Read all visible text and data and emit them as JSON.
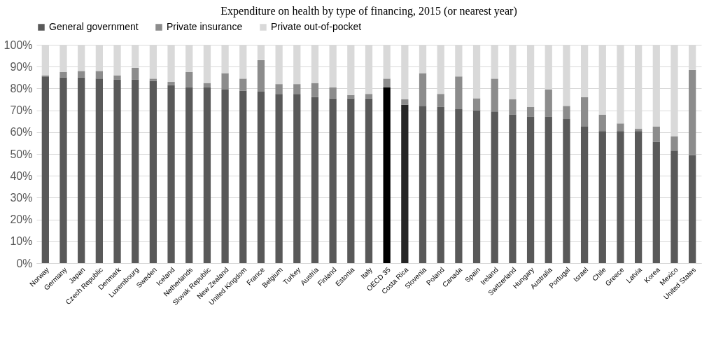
{
  "chart_data": {
    "type": "bar",
    "title": "Expenditure on health by type of financing, 2015 (or nearest year)",
    "stacked": true,
    "legend": "top",
    "grid": "y",
    "categories": [
      "Norway",
      "Germany",
      "Japan",
      "Czech Republic",
      "Denmark",
      "Luxembourg",
      "Sweden",
      "Iceland",
      "Netherlands",
      "Slovak Republic",
      "New Zealand",
      "United Kingdom",
      "France",
      "Belgium",
      "Turkey",
      "Austria",
      "Finland",
      "Estonia",
      "Italy",
      "OECD 35",
      "Costa Rica",
      "Slovenia",
      "Poland",
      "Canada",
      "Spain",
      "Ireland",
      "Switzerland",
      "Hungary",
      "Australia",
      "Portugal",
      "Israel",
      "Chile",
      "Greece",
      "Latvia",
      "Korea",
      "Mexico",
      "United States"
    ],
    "series": [
      {
        "name": "General government",
        "color": "#595959",
        "colors": [
          "#595959",
          "#595959",
          "#595959",
          "#595959",
          "#595959",
          "#595959",
          "#595959",
          "#595959",
          "#595959",
          "#595959",
          "#595959",
          "#595959",
          "#595959",
          "#595959",
          "#595959",
          "#595959",
          "#595959",
          "#595959",
          "#595959",
          "#000000",
          "#262626",
          "#595959",
          "#595959",
          "#595959",
          "#595959",
          "#595959",
          "#595959",
          "#595959",
          "#595959",
          "#595959",
          "#595959",
          "#595959",
          "#595959",
          "#595959",
          "#595959",
          "#595959",
          "#595959"
        ],
        "values": [
          85.5,
          85,
          85,
          84.5,
          84,
          84,
          83.5,
          81.5,
          80.5,
          80.5,
          79.5,
          79,
          78.5,
          77.5,
          77.5,
          76,
          75.5,
          75.5,
          75.5,
          80.5,
          72.5,
          72,
          71.5,
          70.5,
          70,
          69.5,
          68,
          67,
          67,
          66,
          62.5,
          60.5,
          60.5,
          60.5,
          55.5,
          51.5,
          49.5
        ]
      },
      {
        "name": "Private insurance",
        "color": "#8c8c8c",
        "values": [
          0.5,
          2.5,
          3,
          3.5,
          2,
          5.5,
          1,
          1.5,
          7,
          2,
          7.5,
          5.5,
          14.5,
          4.5,
          4.5,
          6.5,
          5,
          1.5,
          2,
          4,
          2.5,
          15,
          6,
          15,
          5.5,
          15,
          7,
          4.5,
          12.5,
          6,
          13.5,
          7.5,
          3.5,
          1,
          7,
          6.5,
          39
        ]
      },
      {
        "name": "Private out-of-pocket",
        "color": "#d9d9d9",
        "values": [
          14,
          12.5,
          12,
          12,
          14,
          10.5,
          15.5,
          17,
          12.5,
          17.5,
          13,
          15.5,
          7,
          18,
          18,
          17.5,
          19.5,
          23,
          22.5,
          15.5,
          25,
          13,
          22.5,
          14.5,
          24.5,
          15.5,
          25,
          28.5,
          20.5,
          28,
          24,
          32,
          36,
          38.5,
          37.5,
          42,
          11.5
        ]
      }
    ],
    "ylim": [
      0,
      100
    ],
    "yticks": [
      {
        "value": 0,
        "label": "0%"
      },
      {
        "value": 10,
        "label": "10%"
      },
      {
        "value": 20,
        "label": "20%"
      },
      {
        "value": 30,
        "label": "30%"
      },
      {
        "value": 40,
        "label": "40%"
      },
      {
        "value": 50,
        "label": "50%"
      },
      {
        "value": 60,
        "label": "60%"
      },
      {
        "value": 70,
        "label": "70%"
      },
      {
        "value": 80,
        "label": "80%"
      },
      {
        "value": 90,
        "label": "90%"
      },
      {
        "value": 100,
        "label": "100%"
      }
    ]
  }
}
